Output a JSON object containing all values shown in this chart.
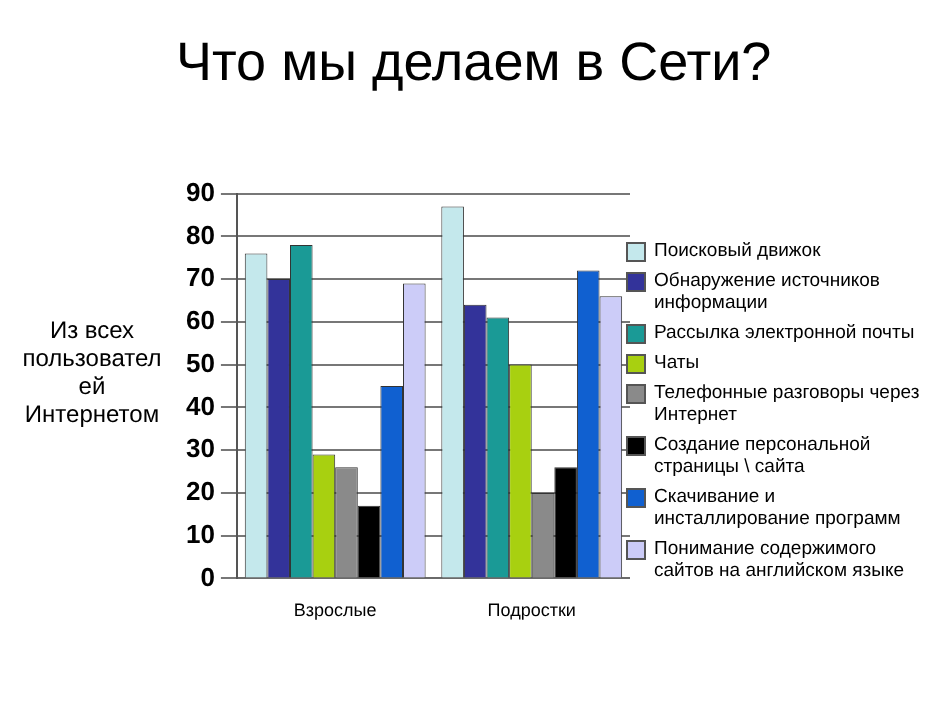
{
  "chart_data": {
    "type": "bar",
    "title": "Что мы делаем в Сети?",
    "ylabel": "Из всех пользователей Интернетом",
    "categories": [
      "Взрослые",
      "Подростки"
    ],
    "series": [
      {
        "name": "Поисковый движок",
        "color": "#c4e8ec",
        "values": [
          76,
          87
        ]
      },
      {
        "name": "Обнаружение источников информации",
        "color": "#33339a",
        "values": [
          70,
          64
        ]
      },
      {
        "name": "Рассылка электронной почты",
        "color": "#1a9a96",
        "values": [
          78,
          61
        ]
      },
      {
        "name": "Чаты",
        "color": "#a8d010",
        "values": [
          29,
          50
        ]
      },
      {
        "name": "Телефонные разговоры через Интернет",
        "color": "#8a8a8a",
        "values": [
          26,
          20
        ]
      },
      {
        "name": "Создание персональной страницы \\ сайта",
        "color": "#000000",
        "values": [
          17,
          26
        ]
      },
      {
        "name": "Скачивание и инсталлирование программ",
        "color": "#1060d0",
        "values": [
          45,
          72
        ]
      },
      {
        "name": "Понимание содержимого сайтов на английском языке",
        "color": "#ccccf8",
        "values": [
          69,
          66
        ]
      }
    ],
    "ylim": [
      0,
      90
    ],
    "yticks": [
      0,
      10,
      20,
      30,
      40,
      50,
      60,
      70,
      80,
      90
    ],
    "grid": "y",
    "legend": "right"
  }
}
